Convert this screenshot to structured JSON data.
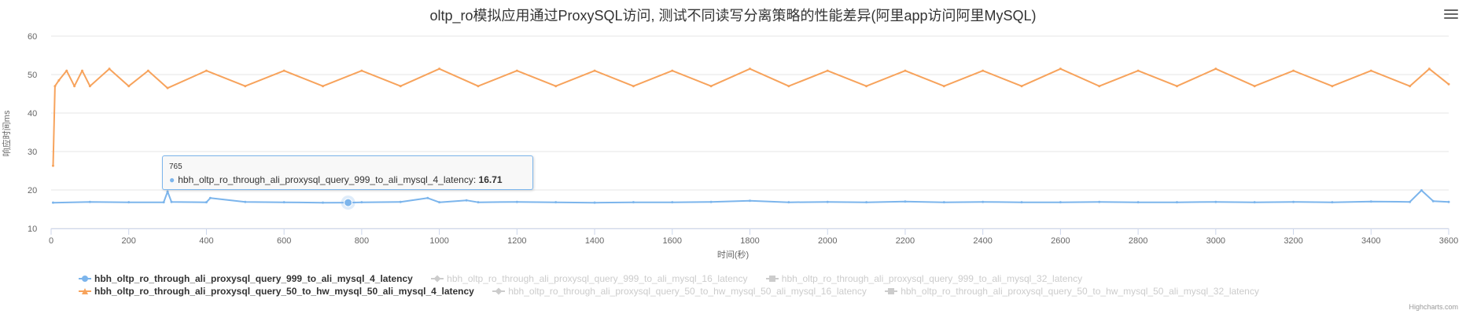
{
  "title": "oltp_ro模拟应用通过ProxySQL访问, 测试不同读写分离策略的性能差异(阿里app访问阿里MySQL)",
  "credits": "Highcharts.com",
  "tooltip": {
    "x": "765",
    "series_name": "hbh_oltp_ro_through_ali_proxysql_query_999_to_ali_mysql_4_latency",
    "value": "16.71"
  },
  "chart_data": {
    "type": "line",
    "title": "oltp_ro模拟应用通过ProxySQL访问, 测试不同读写分离策略的性能差异(阿里app访问阿里MySQL)",
    "xlabel": "时间(秒)",
    "ylabel": "响应时间ms",
    "xlim": [
      0,
      3600
    ],
    "ylim": [
      10,
      60
    ],
    "xticks": [
      0,
      200,
      400,
      600,
      800,
      1000,
      1200,
      1400,
      1600,
      1800,
      2000,
      2200,
      2400,
      2600,
      2800,
      3000,
      3200,
      3400,
      3600
    ],
    "yticks": [
      10,
      20,
      30,
      40,
      50,
      60
    ],
    "grid": true,
    "legend_placement": "bottom",
    "series": [
      {
        "name": "hbh_oltp_ro_through_ali_proxysql_query_999_to_ali_mysql_4_latency",
        "color": "#7cb5ec",
        "visible": true,
        "symbol": "circle",
        "x": [
          5,
          100,
          200,
          290,
          300,
          310,
          400,
          410,
          500,
          600,
          700,
          765,
          800,
          900,
          970,
          1000,
          1070,
          1100,
          1200,
          1300,
          1400,
          1500,
          1600,
          1700,
          1800,
          1900,
          2000,
          2100,
          2200,
          2300,
          2400,
          2500,
          2600,
          2700,
          2800,
          2900,
          3000,
          3100,
          3200,
          3300,
          3400,
          3500,
          3530,
          3560,
          3600
        ],
        "y": [
          16.7,
          16.9,
          16.8,
          16.8,
          19.6,
          16.9,
          16.8,
          17.9,
          16.9,
          16.8,
          16.7,
          16.71,
          16.8,
          16.9,
          17.9,
          16.8,
          17.3,
          16.8,
          16.9,
          16.8,
          16.7,
          16.8,
          16.8,
          16.9,
          17.2,
          16.8,
          16.9,
          16.8,
          17.0,
          16.8,
          16.9,
          16.8,
          16.8,
          16.9,
          16.8,
          16.8,
          16.9,
          16.8,
          16.9,
          16.8,
          17.0,
          16.9,
          19.9,
          17.1,
          16.9
        ]
      },
      {
        "name": "hbh_oltp_ro_through_ali_proxysql_query_999_to_ali_mysql_16_latency",
        "color": "#434348",
        "visible": false,
        "symbol": "diamond",
        "x": [],
        "y": []
      },
      {
        "name": "hbh_oltp_ro_through_ali_proxysql_query_999_to_ali_mysql_32_latency",
        "color": "#90ed7d",
        "visible": false,
        "symbol": "square",
        "x": [],
        "y": []
      },
      {
        "name": "hbh_oltp_ro_through_ali_proxysql_query_50_to_hw_mysql_50_ali_mysql_4_latency",
        "color": "#f7a35c",
        "visible": true,
        "symbol": "triangle",
        "x": [
          5,
          10,
          20,
          40,
          60,
          80,
          100,
          150,
          200,
          250,
          300,
          400,
          500,
          600,
          700,
          800,
          900,
          1000,
          1100,
          1200,
          1300,
          1400,
          1500,
          1600,
          1700,
          1800,
          1900,
          2000,
          2100,
          2200,
          2300,
          2400,
          2500,
          2600,
          2700,
          2800,
          2900,
          3000,
          3100,
          3200,
          3300,
          3400,
          3500,
          3550,
          3600
        ],
        "y": [
          26.3,
          47.0,
          48.5,
          51.0,
          47.0,
          51.0,
          47.0,
          51.5,
          47.0,
          51.0,
          46.5,
          51.0,
          47.0,
          51.0,
          47.0,
          51.0,
          47.0,
          51.5,
          47.0,
          51.0,
          47.0,
          51.0,
          47.0,
          51.0,
          47.0,
          51.5,
          47.0,
          51.0,
          47.0,
          51.0,
          47.0,
          51.0,
          47.0,
          51.5,
          47.0,
          51.0,
          47.0,
          51.5,
          47.0,
          51.0,
          47.0,
          51.0,
          47.0,
          51.5,
          47.5
        ]
      },
      {
        "name": "hbh_oltp_ro_through_ali_proxysql_query_50_to_hw_mysql_50_ali_mysql_16_latency",
        "color": "#8085e9",
        "visible": false,
        "symbol": "diamond",
        "x": [],
        "y": []
      },
      {
        "name": "hbh_oltp_ro_through_ali_proxysql_query_50_to_hw_mysql_50_ali_mysql_32_latency",
        "color": "#f15c80",
        "visible": false,
        "symbol": "square",
        "x": [],
        "y": []
      }
    ]
  }
}
